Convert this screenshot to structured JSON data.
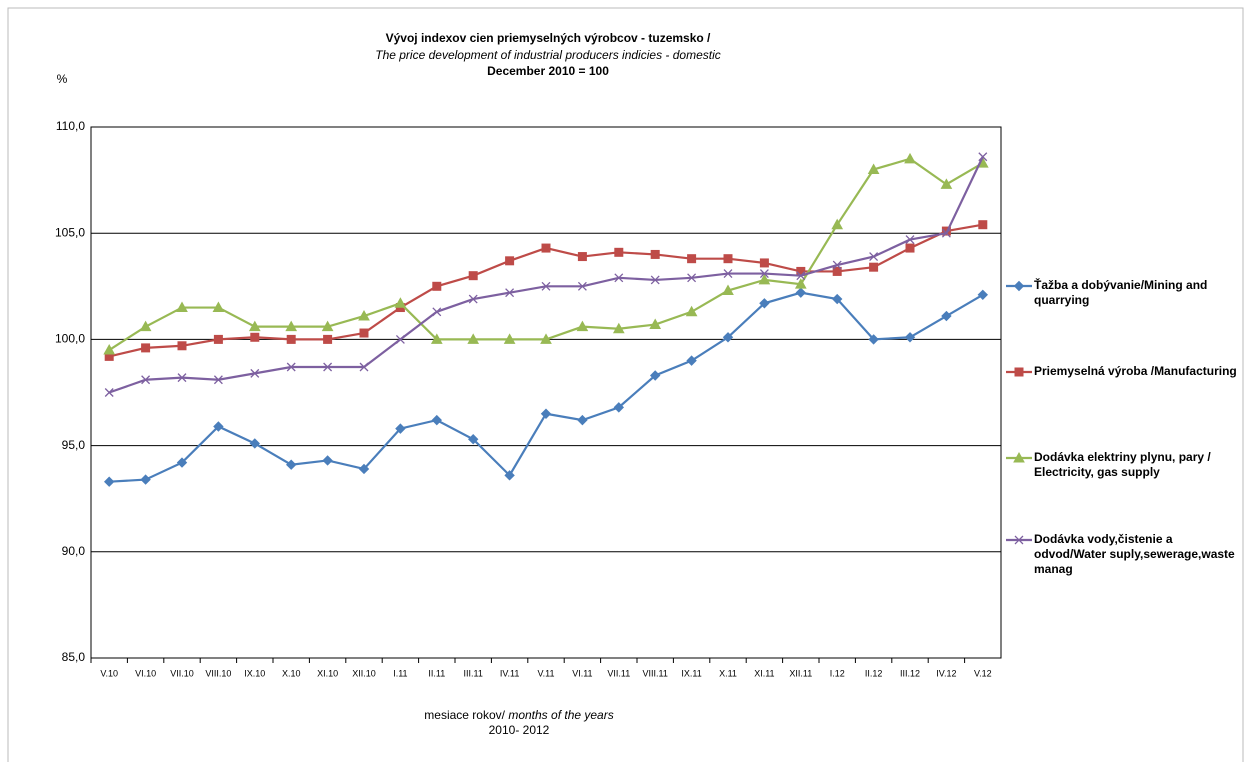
{
  "chart_data": {
    "type": "line",
    "title": "Vývoj indexov cien priemyselných výrobcov - tuzemsko /",
    "subtitle": "The price development of industrial producers indicies - domestic",
    "subtitle2": "December 2010 = 100",
    "y_label": "%",
    "x_label": "mesiace rokov/",
    "x_label_en": "months of the years",
    "x_label_years": "2010- 2012",
    "categories": [
      "V.10",
      "VI.10",
      "VII.10",
      "VIII.10",
      "IX.10",
      "X.10",
      "XI.10",
      "XII.10",
      "I.11",
      "II.11",
      "III.11",
      "IV.11",
      "V.11",
      "VI.11",
      "VII.11",
      "VIII.11",
      "IX.11",
      "X.11",
      "XI.11",
      "XII.11",
      "I.12",
      "II.12",
      "III.12",
      "IV.12",
      "V.12"
    ],
    "series": [
      {
        "name": "Ťažba a dobývanie/Mining and quarrying",
        "color": "#4a7ebb",
        "marker": "diamond",
        "values": [
          93.3,
          93.4,
          94.2,
          95.9,
          95.1,
          94.1,
          94.3,
          93.9,
          95.8,
          96.2,
          95.3,
          93.6,
          96.5,
          96.2,
          96.8,
          98.3,
          99.0,
          100.1,
          101.7,
          102.2,
          101.9,
          100.0,
          100.1,
          101.1,
          102.1
        ]
      },
      {
        "name": "Priemyselná výroba /Manufacturing",
        "color": "#be4b48",
        "marker": "square",
        "values": [
          99.2,
          99.6,
          99.7,
          100.0,
          100.1,
          100.0,
          100.0,
          100.3,
          101.5,
          102.5,
          103.0,
          103.7,
          104.3,
          103.9,
          104.1,
          104.0,
          103.8,
          103.8,
          103.6,
          103.2,
          103.2,
          103.4,
          104.3,
          105.1,
          105.4
        ]
      },
      {
        "name": "Dodávka elektriny plynu, pary / Electricity, gas supply",
        "color": "#98b954",
        "marker": "triangle",
        "values": [
          99.5,
          100.6,
          101.5,
          101.5,
          100.6,
          100.6,
          100.6,
          101.1,
          101.7,
          100.0,
          100.0,
          100.0,
          100.0,
          100.6,
          100.5,
          100.7,
          101.3,
          102.3,
          102.8,
          102.6,
          105.4,
          108.0,
          108.5,
          107.3,
          108.3
        ]
      },
      {
        "name": "Dodávka vody,čistenie a odvod/Water suply,sewerage,waste manag",
        "color": "#7d60a0",
        "marker": "x",
        "values": [
          97.5,
          98.1,
          98.2,
          98.1,
          98.4,
          98.7,
          98.7,
          98.7,
          100.0,
          101.3,
          101.9,
          102.2,
          102.5,
          102.5,
          102.9,
          102.8,
          102.9,
          103.1,
          103.1,
          103.0,
          103.5,
          103.9,
          104.7,
          105.0,
          108.6
        ]
      }
    ],
    "ylim": [
      85,
      110
    ],
    "yticks": [
      {
        "value": 85,
        "label": "85,0"
      },
      {
        "value": 90,
        "label": "90,0"
      },
      {
        "value": 95,
        "label": "95,0"
      },
      {
        "value": 100,
        "label": "100,0"
      },
      {
        "value": 105,
        "label": "105,0"
      },
      {
        "value": 110,
        "label": "110,0"
      }
    ],
    "grid": true,
    "legend": "right"
  }
}
